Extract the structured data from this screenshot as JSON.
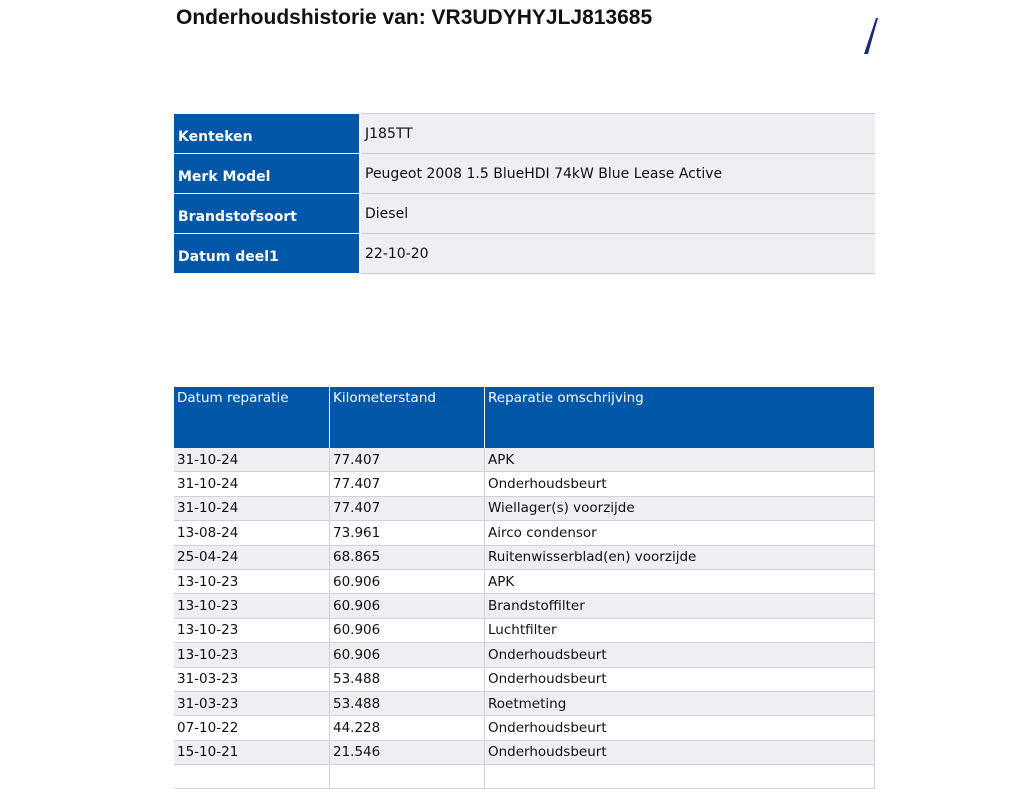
{
  "title": "Onderhoudshistorie van: VR3UDYHYJLJ813685",
  "brand_color": "#0057a8",
  "vehicle_info": [
    {
      "label": "Kenteken",
      "value": "J185TT"
    },
    {
      "label": "Merk Model",
      "value": "Peugeot 2008 1.5 BlueHDI 74kW Blue Lease Active"
    },
    {
      "label": "Brandstofsoort",
      "value": "Diesel"
    },
    {
      "label": "Datum deel1",
      "value": "22-10-20"
    }
  ],
  "history": {
    "columns": [
      "Datum reparatie",
      "Kilometerstand",
      "Reparatie omschrijving"
    ],
    "rows": [
      [
        "31-10-24",
        "77.407",
        "APK"
      ],
      [
        "31-10-24",
        "77.407",
        "Onderhoudsbeurt"
      ],
      [
        "31-10-24",
        "77.407",
        "Wiellager(s) voorzijde"
      ],
      [
        "13-08-24",
        "73.961",
        "Airco condensor"
      ],
      [
        "25-04-24",
        "68.865",
        "Ruitenwisserblad(en) voorzijde"
      ],
      [
        "13-10-23",
        "60.906",
        "APK"
      ],
      [
        "13-10-23",
        "60.906",
        "Brandstoffilter"
      ],
      [
        "13-10-23",
        "60.906",
        "Luchtfilter"
      ],
      [
        "13-10-23",
        "60.906",
        "Onderhoudsbeurt"
      ],
      [
        "31-03-23",
        "53.488",
        "Onderhoudsbeurt"
      ],
      [
        "31-03-23",
        "53.488",
        "Roetmeting"
      ],
      [
        "07-10-22",
        "44.228",
        "Onderhoudsbeurt"
      ],
      [
        "15-10-21",
        "21.546",
        "Onderhoudsbeurt"
      ]
    ]
  }
}
